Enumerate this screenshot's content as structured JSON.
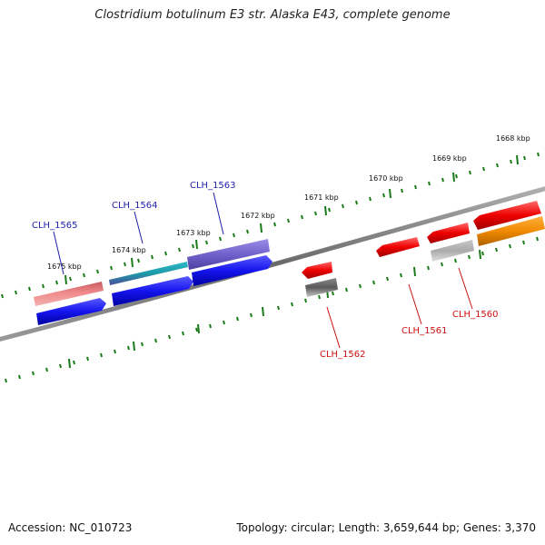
{
  "title": "Clostridium botulinum E3 str. Alaska E43, complete genome",
  "footer": {
    "accession": "Accession: NC_010723",
    "topology": "Topology: circular; Length: 3,659,644 bp; Genes: 3,370"
  },
  "colors": {
    "background": "#ffffff",
    "backbone": "#808080",
    "ticks": "#1a7a1a",
    "forward_label": "#1f1fa8",
    "reverse_label": "#cc1111"
  },
  "scale_labels": [
    "1668 kbp",
    "1669 kbp",
    "1670 kbp",
    "1671 kbp",
    "1672 kbp",
    "1673 kbp",
    "1674 kbp",
    "1675 kbp"
  ],
  "genes": [
    {
      "label": "CLH_1565",
      "strand": "forward"
    },
    {
      "label": "CLH_1564",
      "strand": "forward"
    },
    {
      "label": "CLH_1563",
      "strand": "forward"
    },
    {
      "label": "CLH_1562",
      "strand": "reverse"
    },
    {
      "label": "CLH_1561",
      "strand": "reverse"
    },
    {
      "label": "CLH_1560",
      "strand": "reverse"
    }
  ]
}
